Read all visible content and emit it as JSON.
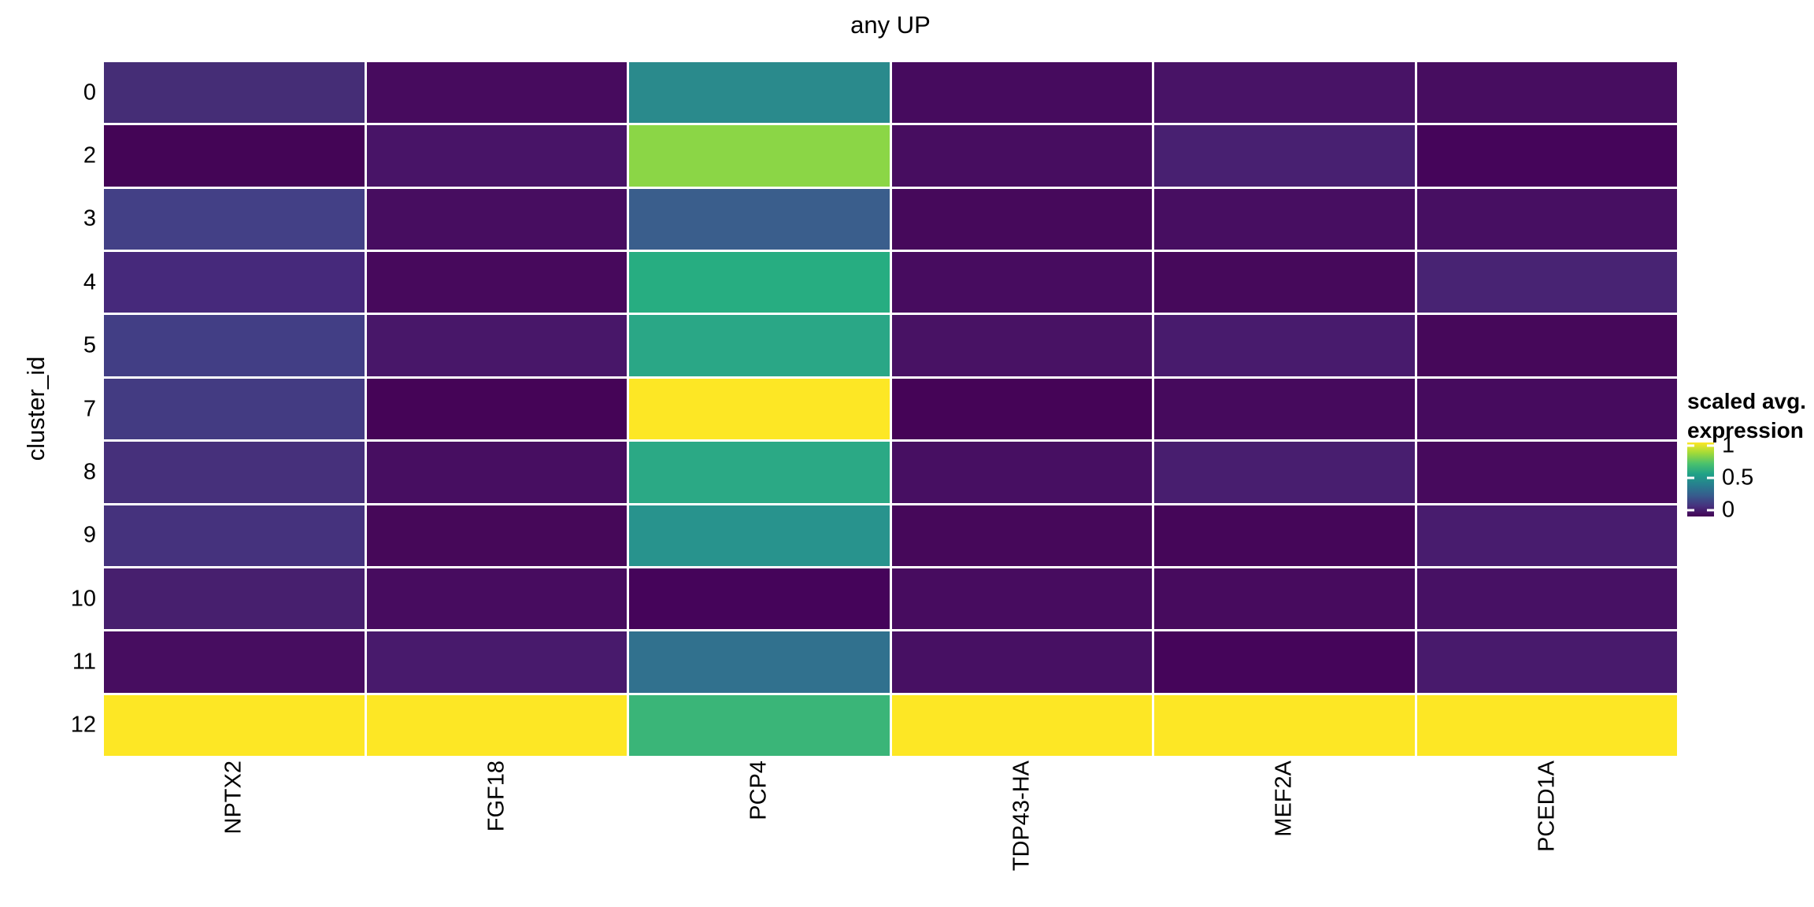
{
  "chart_data": {
    "type": "heatmap",
    "title": "any UP",
    "xlabel": "",
    "ylabel": "cluster_id",
    "x_categories": [
      "NPTX2",
      "FGF18",
      "PCP4",
      "TDP43-HA",
      "MEF2A",
      "PCED1A"
    ],
    "y_categories": [
      "0",
      "2",
      "3",
      "4",
      "5",
      "7",
      "8",
      "9",
      "10",
      "11",
      "12"
    ],
    "value_range": [
      0,
      1
    ],
    "colormap": "viridis",
    "grid": false,
    "values": [
      [
        0.14,
        0.03,
        0.48,
        0.03,
        0.06,
        0.04
      ],
      [
        0.0,
        0.06,
        0.83,
        0.04,
        0.1,
        0.01
      ],
      [
        0.2,
        0.04,
        0.33,
        0.02,
        0.05,
        0.05
      ],
      [
        0.12,
        0.03,
        0.62,
        0.03,
        0.02,
        0.11
      ],
      [
        0.2,
        0.07,
        0.6,
        0.05,
        0.08,
        0.02
      ],
      [
        0.19,
        0.01,
        1.0,
        0.01,
        0.03,
        0.03
      ],
      [
        0.15,
        0.05,
        0.61,
        0.05,
        0.09,
        0.03
      ],
      [
        0.15,
        0.02,
        0.52,
        0.02,
        0.02,
        0.09
      ],
      [
        0.1,
        0.04,
        0.01,
        0.03,
        0.03,
        0.06
      ],
      [
        0.05,
        0.08,
        0.39,
        0.05,
        0.01,
        0.08
      ],
      [
        1.0,
        1.0,
        0.66,
        1.0,
        1.0,
        1.0
      ]
    ],
    "cell_colors": [
      [
        "#452d76",
        "#470b5e",
        "#2a8a8c",
        "#460b5e",
        "#481366",
        "#470d60"
      ],
      [
        "#440556",
        "#481467",
        "#8bd646",
        "#470d60",
        "#482071",
        "#45055a"
      ],
      [
        "#434086",
        "#470d60",
        "#3a5e8c",
        "#46095b",
        "#470e61",
        "#470f62"
      ],
      [
        "#46297b",
        "#47095c",
        "#27ad81",
        "#470c5f",
        "#46095b",
        "#482373"
      ],
      [
        "#423e85",
        "#481769",
        "#2aa786",
        "#481264",
        "#481b6d",
        "#46085a"
      ],
      [
        "#433b82",
        "#450457",
        "#fde725",
        "#450457",
        "#460a5d",
        "#460b5e"
      ],
      [
        "#46307b",
        "#470e61",
        "#2ba985",
        "#470f62",
        "#481e6f",
        "#470a5d"
      ],
      [
        "#45327d",
        "#460859",
        "#28938d",
        "#46085a",
        "#450659",
        "#481c6e"
      ],
      [
        "#471f6e",
        "#470c5f",
        "#45045a",
        "#470c5f",
        "#470b5e",
        "#471164"
      ],
      [
        "#470d60",
        "#481a6c",
        "#31718e",
        "#471063",
        "#45055a",
        "#481a6c"
      ],
      [
        "#fde725",
        "#fde725",
        "#3ab578",
        "#fde725",
        "#fde725",
        "#fde725"
      ]
    ],
    "legend": {
      "title_line1": "scaled avg.",
      "title_line2": "expression",
      "position": "right",
      "tick_labels": [
        "1",
        "0.5",
        "0"
      ],
      "tick_values": [
        1,
        0.5,
        0
      ],
      "gradient_stops_bottom_to_top": [
        "#440154",
        "#46327e",
        "#365c8d",
        "#277f8e",
        "#1fa187",
        "#4ac16d",
        "#a0da39",
        "#fde725"
      ]
    },
    "cell_border_color": "#ffffff",
    "text_color": "#000000",
    "background_color": "#ffffff"
  }
}
